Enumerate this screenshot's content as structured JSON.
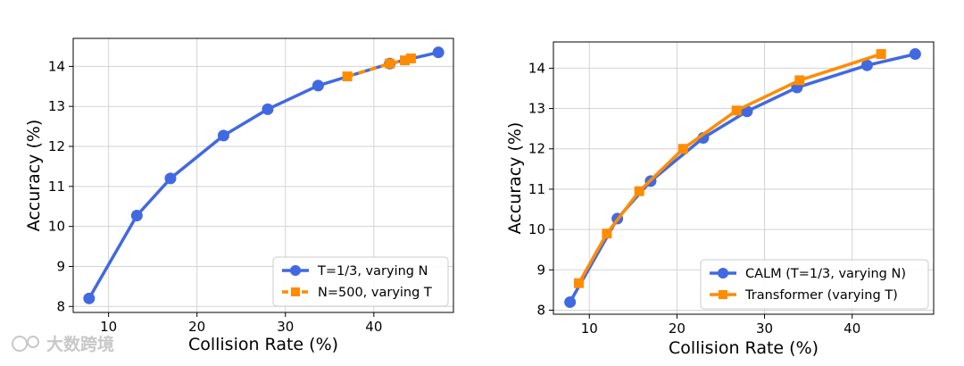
{
  "chart_data": [
    {
      "type": "line",
      "title": "",
      "xlabel": "Collision Rate (%)",
      "ylabel": "Accuracy (%)",
      "xlim": [
        6,
        49
      ],
      "ylim": [
        7.85,
        14.7
      ],
      "xticks": [
        10,
        20,
        30,
        40
      ],
      "yticks": [
        8,
        9,
        10,
        11,
        12,
        13,
        14
      ],
      "grid": true,
      "legend_position": "bottom-right",
      "series": [
        {
          "name": "T=1/3,  varying N",
          "color": "#4169e1",
          "style": "solid",
          "marker": "circle",
          "x": [
            7.8,
            13.2,
            17.0,
            23.0,
            28.0,
            33.7,
            41.8,
            47.3
          ],
          "y": [
            8.2,
            10.27,
            11.2,
            12.27,
            12.93,
            13.52,
            14.07,
            14.35
          ]
        },
        {
          "name": "N=500, varying T",
          "color": "#ff8c00",
          "style": "dashed",
          "marker": "square",
          "x": [
            37.0,
            41.8,
            43.5,
            44.2
          ],
          "y": [
            13.75,
            14.07,
            14.15,
            14.2
          ]
        }
      ]
    },
    {
      "type": "line",
      "title": "",
      "xlabel": "Collision Rate (%)",
      "ylabel": "Accuracy (%)",
      "xlim": [
        5.9,
        49.3
      ],
      "ylim": [
        7.9,
        14.65
      ],
      "xticks": [
        10,
        20,
        30,
        40
      ],
      "yticks": [
        8,
        9,
        10,
        11,
        12,
        13,
        14
      ],
      "grid": true,
      "legend_position": "bottom-right",
      "series": [
        {
          "name": "CALM (T=1/3,  varying N)",
          "color": "#4169e1",
          "style": "solid",
          "marker": "circle",
          "x": [
            7.8,
            13.2,
            17.0,
            23.0,
            28.0,
            33.7,
            41.7,
            47.2
          ],
          "y": [
            8.2,
            10.27,
            11.2,
            12.27,
            12.93,
            13.52,
            14.07,
            14.35
          ]
        },
        {
          "name": "Transformer (varying T)",
          "color": "#ff8c00",
          "style": "solid",
          "marker": "square",
          "x": [
            8.8,
            12.0,
            15.7,
            20.7,
            26.8,
            34.0,
            43.3
          ],
          "y": [
            8.67,
            9.9,
            10.95,
            12.0,
            12.95,
            13.7,
            14.35
          ]
        }
      ]
    }
  ],
  "watermark": {
    "text": "大数跨境"
  }
}
